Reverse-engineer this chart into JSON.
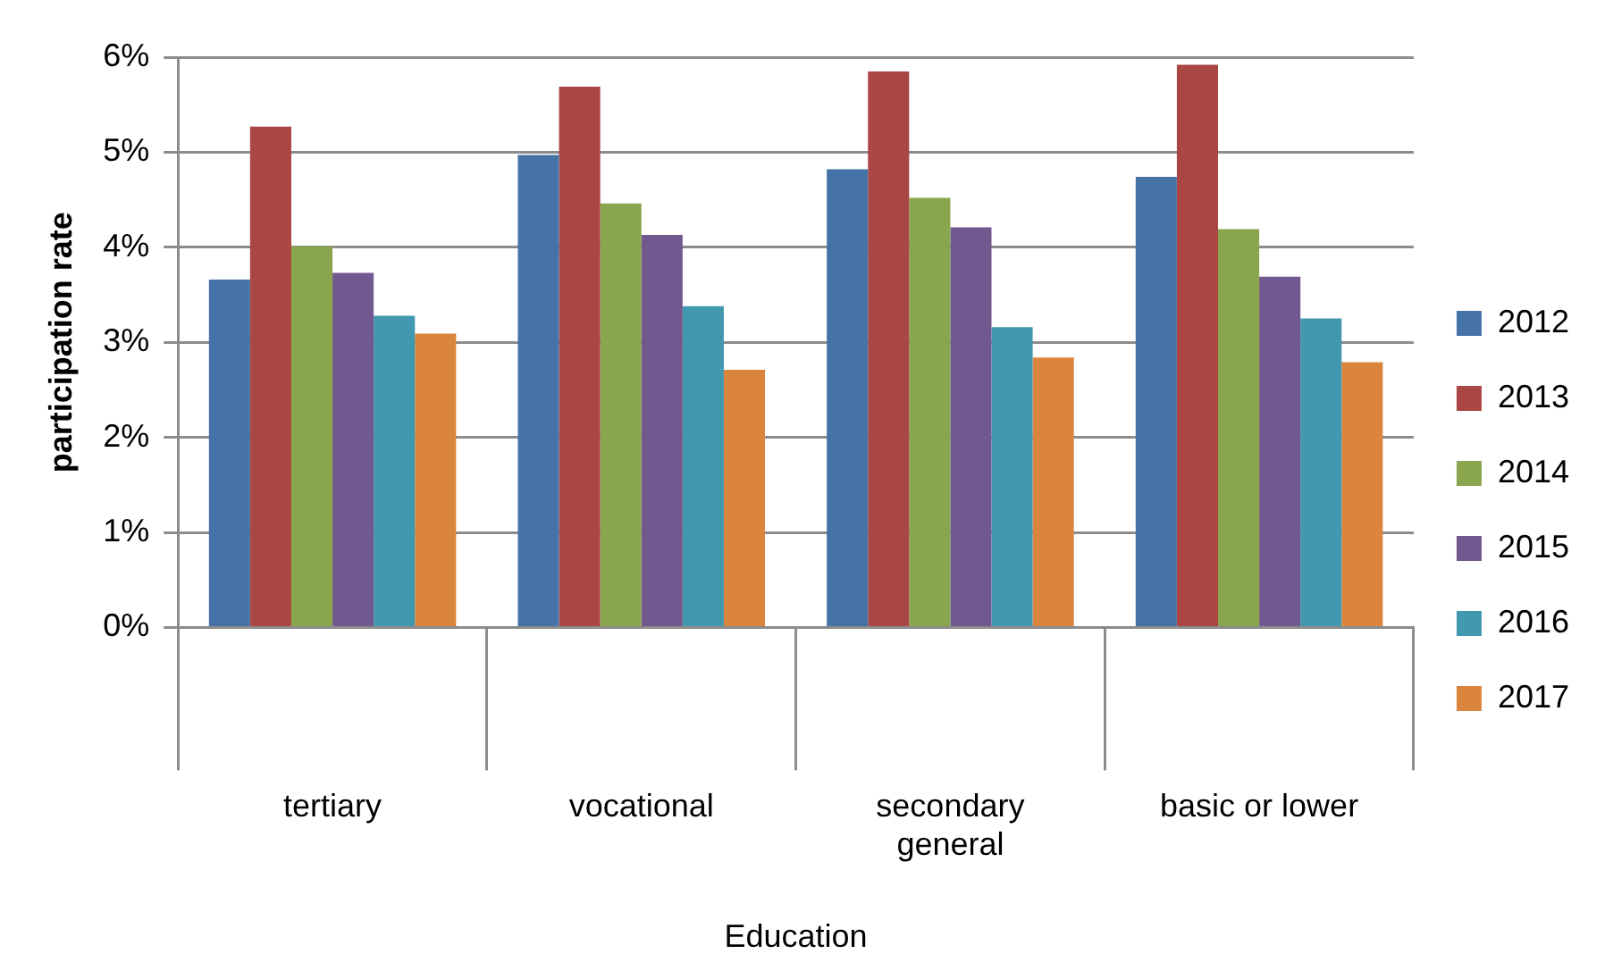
{
  "chart_data": {
    "type": "bar",
    "xlabel": "Education",
    "ylabel": "participation rate",
    "categories": [
      "tertiary",
      "vocational",
      "secondary general",
      "basic or lower"
    ],
    "series": [
      {
        "name": "2012",
        "color": "#4572a7",
        "values": [
          3.66,
          4.97,
          4.82,
          4.74
        ]
      },
      {
        "name": "2013",
        "color": "#aa4643",
        "values": [
          5.27,
          5.69,
          5.85,
          5.92
        ]
      },
      {
        "name": "2014",
        "color": "#89a54e",
        "values": [
          4.01,
          4.46,
          4.52,
          4.19
        ]
      },
      {
        "name": "2015",
        "color": "#71588f",
        "values": [
          3.73,
          4.13,
          4.21,
          3.69
        ]
      },
      {
        "name": "2016",
        "color": "#4198af",
        "values": [
          3.28,
          3.38,
          3.16,
          3.25
        ]
      },
      {
        "name": "2017",
        "color": "#db843d",
        "values": [
          3.09,
          2.71,
          2.84,
          2.79
        ]
      }
    ],
    "ylim": [
      0,
      6
    ],
    "yticks": [
      {
        "value": 0,
        "label": "0%"
      },
      {
        "value": 1,
        "label": "1%"
      },
      {
        "value": 2,
        "label": "2%"
      },
      {
        "value": 3,
        "label": "3%"
      },
      {
        "value": 4,
        "label": "4%"
      },
      {
        "value": 5,
        "label": "5%"
      },
      {
        "value": 6,
        "label": "6%"
      }
    ],
    "grid": "y",
    "legend": "right"
  }
}
